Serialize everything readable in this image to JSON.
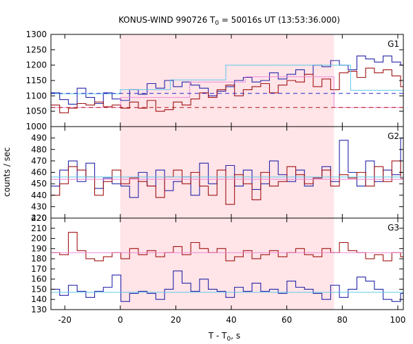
{
  "chart_data": {
    "type": "line",
    "title": "KONUS-WIND 990726 T",
    "title_sub": "0",
    "title_rest": " = 50016s UT (13:53:36.000)",
    "xlabel": "T - T",
    "xlabel_sub": "0",
    "xlabel_rest": ", s",
    "ylabel": "counts / sec",
    "xlim": [
      -25,
      102
    ],
    "xticks": [
      "-20",
      "0",
      "20",
      "40",
      "60",
      "80",
      "100"
    ],
    "xtick_values": [
      -20,
      0,
      20,
      40,
      60,
      80,
      100
    ],
    "shaded_region": [
      0,
      77
    ],
    "colors": {
      "shade": "#ffe4e8",
      "blue": "#2323a8",
      "red": "#a01010",
      "cyan": "#5bc8e8",
      "pink": "#ee8ad8",
      "blue_dash": "#2323c8",
      "red_dash": "#b01010"
    },
    "step": 3.15,
    "x_start": -25,
    "panels": [
      {
        "name": "G1",
        "ylim": [
          1000,
          1300
        ],
        "yticks": [
          "1000",
          "1050",
          "1100",
          "1150",
          "1200",
          "1250",
          "1300"
        ],
        "ytick_values": [
          1000,
          1050,
          1100,
          1150,
          1200,
          1250,
          1300
        ],
        "series": [
          {
            "color": "blue",
            "values": [
              1110,
              1088,
              1073,
              1125,
              1095,
              1075,
              1110,
              1090,
              1085,
              1120,
              1105,
              1140,
              1125,
              1150,
              1130,
              1145,
              1135,
              1125,
              1100,
              1115,
              1130,
              1150,
              1160,
              1145,
              1150,
              1175,
              1155,
              1170,
              1185,
              1170,
              1200,
              1195,
              1215,
              1200,
              1185,
              1230,
              1220,
              1210,
              1230,
              1210,
              1200,
              1225,
              1230,
              1215,
              1225,
              1200,
              1210,
              1180,
              1170,
              1190,
              1140,
              1110,
              1140,
              1120,
              1105,
              1100,
              1120,
              1110,
              1105,
              1095,
              1110,
              1120,
              1105,
              1095,
              1110,
              1100,
              1120,
              1110,
              1110,
              1110,
              1110
            ]
          },
          {
            "color": "red",
            "values": [
              1070,
              1045,
              1060,
              1075,
              1070,
              1080,
              1065,
              1070,
              1060,
              1080,
              1060,
              1085,
              1050,
              1055,
              1080,
              1070,
              1090,
              1110,
              1095,
              1120,
              1135,
              1100,
              1120,
              1130,
              1140,
              1110,
              1135,
              1150,
              1145,
              1170,
              1130,
              1155,
              1120,
              1175,
              1180,
              1160,
              1190,
              1175,
              1185,
              1165,
              1130,
              1180,
              1175,
              1165,
              1160,
              1175,
              1135,
              1165,
              1140,
              1160,
              1115,
              1160,
              1130,
              1080,
              1090,
              1100,
              1080,
              1060,
              1070,
              1065,
              1050,
              1075,
              1060,
              1080,
              1060,
              1070,
              1050,
              1060,
              1045,
              1060,
              1060
            ]
          },
          {
            "color": "cyan",
            "type": "step",
            "points": [
              [
                -25,
                1107
              ],
              [
                0,
                1107
              ],
              [
                0,
                1120
              ],
              [
                18,
                1120
              ],
              [
                18,
                1152
              ],
              [
                38,
                1152
              ],
              [
                38,
                1200
              ],
              [
                83,
                1200
              ],
              [
                83,
                1118
              ],
              [
                102,
                1118
              ]
            ]
          },
          {
            "color": "pink",
            "type": "step",
            "points": [
              [
                -25,
                1062
              ],
              [
                0,
                1062
              ],
              [
                0,
                1095
              ],
              [
                25,
                1095
              ],
              [
                25,
                1145
              ],
              [
                45,
                1145
              ],
              [
                45,
                1162
              ],
              [
                77,
                1162
              ],
              [
                77,
                1062
              ],
              [
                102,
                1062
              ]
            ]
          },
          {
            "color": "blue_dash",
            "type": "dash",
            "y": 1108
          },
          {
            "color": "red_dash",
            "type": "dash",
            "y": 1062
          }
        ]
      },
      {
        "name": "G2",
        "ylim": [
          420,
          500
        ],
        "yticks": [
          "420",
          "430",
          "440",
          "450",
          "460",
          "470",
          "480",
          "490"
        ],
        "ytick_values": [
          420,
          430,
          440,
          450,
          460,
          470,
          480,
          490
        ],
        "series": [
          {
            "color": "blue",
            "values": [
              448,
              462,
              470,
              452,
              468,
              446,
              455,
              450,
              448,
              438,
              460,
              448,
              462,
              444,
              452,
              456,
              440,
              468,
              450,
              454,
              466,
              448,
              462,
              445,
              450,
              470,
              458,
              452,
              462,
              448,
              455,
              465,
              452,
              488,
              460,
              448,
              470,
              452,
              462,
              458,
              490,
              452,
              460,
              470,
              448,
              458,
              468,
              455,
              452,
              442,
              460,
              466,
              450,
              472,
              458,
              444,
              450,
              472,
              466,
              450,
              448,
              462,
              458,
              470,
              450,
              480,
              462,
              455,
              448,
              455,
              455
            ]
          },
          {
            "color": "red",
            "values": [
              440,
              450,
              465,
              462,
              456,
              440,
              452,
              462,
              450,
              455,
              452,
              448,
              438,
              456,
              462,
              450,
              460,
              448,
              440,
              462,
              432,
              458,
              450,
              436,
              460,
              448,
              452,
              465,
              458,
              450,
              455,
              462,
              448,
              458,
              455,
              460,
              448,
              465,
              452,
              470,
              455,
              460,
              464,
              455,
              472,
              468,
              450,
              460,
              442,
              466,
              450,
              448,
              462,
              468,
              440,
              458,
              450,
              445,
              462,
              450,
              466,
              448,
              458,
              455,
              472,
              445,
              482,
              455,
              448,
              455,
              455
            ]
          },
          {
            "color": "cyan",
            "type": "step",
            "points": [
              [
                -25,
                456
              ],
              [
                102,
                456
              ]
            ]
          },
          {
            "color": "pink",
            "type": "step",
            "points": [
              [
                -25,
                454
              ],
              [
                102,
                454
              ]
            ]
          }
        ]
      },
      {
        "name": "G3",
        "ylim": [
          130,
          220
        ],
        "yticks": [
          "130",
          "140",
          "150",
          "160",
          "170",
          "180",
          "190",
          "200",
          "210",
          "220"
        ],
        "ytick_values": [
          130,
          140,
          150,
          160,
          170,
          180,
          190,
          200,
          210,
          220
        ],
        "series": [
          {
            "color": "red",
            "values": [
              186,
              184,
              206,
              188,
              180,
              178,
              182,
              186,
              180,
              190,
              184,
              188,
              182,
              186,
              192,
              184,
              196,
              190,
              186,
              190,
              178,
              182,
              188,
              180,
              184,
              188,
              182,
              186,
              190,
              184,
              182,
              190,
              186,
              196,
              188,
              186,
              180,
              184,
              178,
              186,
              182,
              190,
              192,
              186,
              196,
              190,
              188,
              192,
              184,
              188,
              186,
              190,
              182,
              188,
              186,
              184,
              180,
              186,
              190,
              186,
              188,
              194,
              182,
              186,
              190,
              180,
              186,
              194,
              182,
              170,
              186
            ]
          },
          {
            "color": "blue",
            "values": [
              150,
              144,
              154,
              148,
              142,
              148,
              152,
              164,
              138,
              146,
              148,
              146,
              140,
              150,
              168,
              156,
              148,
              160,
              150,
              148,
              142,
              152,
              148,
              156,
              148,
              150,
              146,
              158,
              152,
              150,
              146,
              140,
              154,
              142,
              150,
              162,
              158,
              150,
              140,
              138,
              146,
              142,
              150,
              144,
              148,
              146,
              156,
              148,
              152,
              146,
              138,
              146,
              150,
              158,
              140,
              144,
              152,
              146,
              150,
              148,
              156,
              148,
              142,
              150,
              146,
              154,
              152,
              146,
              150,
              140,
              148
            ]
          },
          {
            "color": "pink",
            "type": "step",
            "points": [
              [
                -25,
                186
              ],
              [
                102,
                186
              ]
            ]
          },
          {
            "color": "cyan",
            "type": "step",
            "points": [
              [
                -25,
                147
              ],
              [
                102,
                147
              ]
            ]
          }
        ]
      }
    ]
  }
}
